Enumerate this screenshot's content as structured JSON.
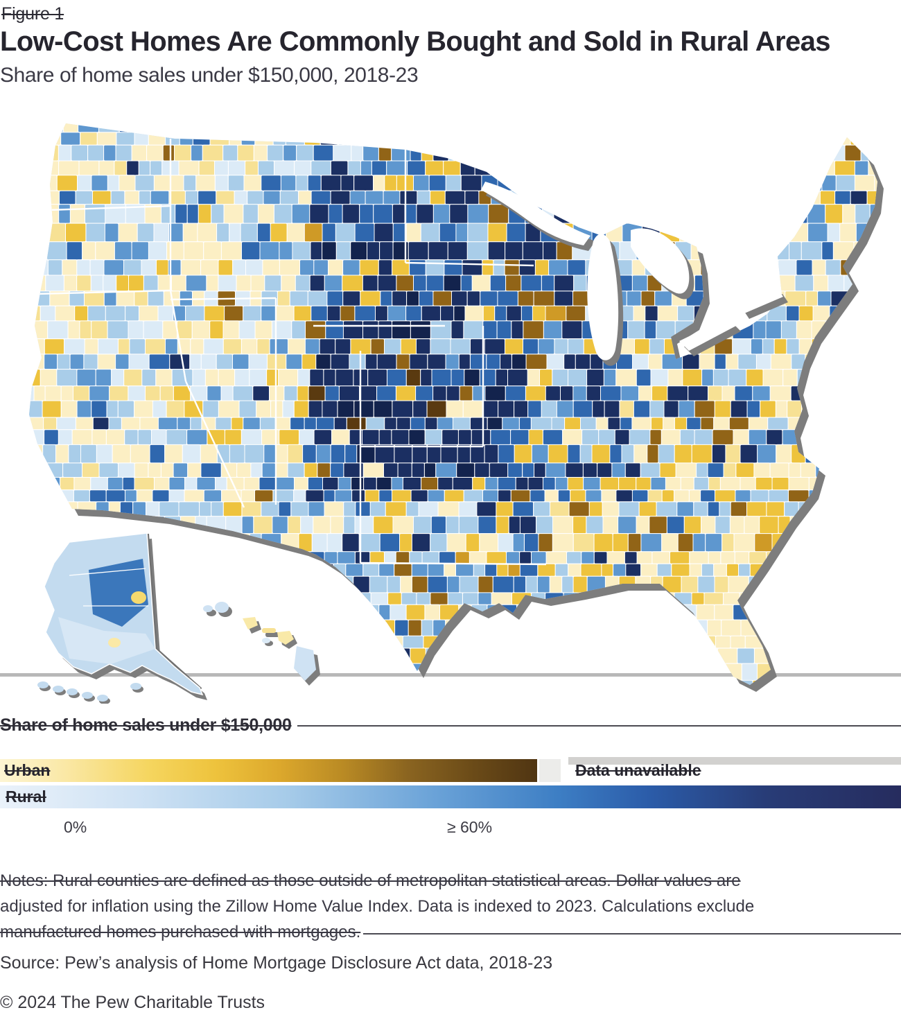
{
  "figure_label": "Figure 1",
  "title": "Low-Cost Homes Are Commonly Bought and Sold in Rural Areas",
  "subtitle": "Share of home sales under $150,000, 2018-23",
  "legend": {
    "heading": "Share of home sales under $150,000",
    "urban_label": "Urban",
    "rural_label": "Rural",
    "data_unavailable_label": "Data unavailable",
    "scale_min_label": "0%",
    "scale_max_label": "≥ 60%",
    "unavailable_color": "#ececea",
    "row_line_color": "#d2d1cf",
    "urban_gradient": [
      "#fdf5d3 0%",
      "#fae8a6 12%",
      "#f5d55e 28%",
      "#eec33d 40%",
      "#dca82c 52%",
      "#b98a24 64%",
      "#8a6420 76%",
      "#6b4b18 88%",
      "#503512 100%"
    ],
    "rural_gradient": [
      "#eaf2fa 0%",
      "#cfe2f4 15%",
      "#a6cbe9 32%",
      "#6ba3d8 48%",
      "#3d7ec4 62%",
      "#2b5ca9 72%",
      "#283c77 85%",
      "#262c5e 100%"
    ]
  },
  "notes": {
    "line1": "Notes: Rural counties are defined as those outside of metropolitan statistical areas. Dollar values are",
    "line2": "adjusted for inflation using the Zillow Home Value Index. Data is indexed to 2023. Calculations exclude",
    "line3": "manufactured homes purchased with mortgages."
  },
  "source": "Source: Pew’s analysis of Home Mortgage Disclosure Act data, 2018-23",
  "copyright": "© 2024 The Pew Charitable Trusts",
  "chart_data": {
    "type": "choropleth",
    "title": "Low-Cost Homes Are Commonly Bought and Sold in Rural Areas",
    "subtitle": "Share of home sales under $150,000, 2018-23",
    "geography": "United States counties, with Alaska and Hawaii insets",
    "variable": "Share of home sales under $150,000, 2018-23",
    "scale": {
      "min": 0,
      "max": 60,
      "units": "percent",
      "min_label": "0%",
      "max_label": "≥ 60%",
      "max_is_open_ended": true
    },
    "series": [
      {
        "name": "Urban",
        "palette": [
          "#fdf5d3",
          "#f5d55e",
          "#eec33d",
          "#b98a24",
          "#8a6420",
          "#503512"
        ]
      },
      {
        "name": "Rural",
        "palette": [
          "#eaf2fa",
          "#a6cbe9",
          "#6ba3d8",
          "#3d7ec4",
          "#2b5ca9",
          "#262c5e"
        ]
      }
    ],
    "data_unavailable_color": "#ececea",
    "patterns": [
      "Highest rural shares (dark navy) cluster in the Great Plains and Midwest: the Dakotas, Nebraska, Kansas, Oklahoma, Iowa, Missouri, Illinois and Mississippi Delta",
      "Pacific and Mountain West counties are mostly light blue and pale yellow (low shares)",
      "Southeast and Florida show many pale-yellow and gold urban counties (lower shares) mixed with blue rural counties",
      "Dark brown urban counties (high urban shares) appear in Oklahoma, Texas panhandle, Illinois and Appalachia",
      "Alaska is mostly light blue with one medium-blue borough; Hawaii islands are light blue and pale yellow"
    ],
    "mosaic": {
      "colors": {
        "paleB": "#dcebf7",
        "lightB": "#a9cde9",
        "midB": "#5e97cf",
        "darkB": "#2f67ae",
        "deepNavy": "#1b2f62",
        "navy2": "#13234d",
        "paleY": "#fcefc4",
        "lightY": "#f7e194",
        "gold": "#eec33d",
        "dGold": "#cf9a26",
        "brown": "#916417",
        "dBrown": "#5a3a10"
      },
      "region_weights": {
        "west": {
          "paleY": 0.3,
          "lightY": 0.08,
          "paleB": 0.16,
          "lightB": 0.22,
          "midB": 0.12,
          "gold": 0.06,
          "darkB": 0.04,
          "deepNavy": 0.01,
          "brown": 0.01
        },
        "plains": {
          "deepNavy": 0.26,
          "darkB": 0.22,
          "midB": 0.16,
          "lightB": 0.12,
          "paleB": 0.05,
          "gold": 0.09,
          "paleY": 0.05,
          "brown": 0.04,
          "dGold": 0.01
        },
        "plainsCore": {
          "deepNavy": 0.4,
          "navy2": 0.1,
          "darkB": 0.18,
          "midB": 0.1,
          "lightB": 0.05,
          "gold": 0.07,
          "brown": 0.05,
          "dBrown": 0.02,
          "paleY": 0.03
        },
        "south": {
          "lightB": 0.22,
          "midB": 0.16,
          "darkB": 0.12,
          "deepNavy": 0.08,
          "paleB": 0.06,
          "paleY": 0.16,
          "gold": 0.12,
          "brown": 0.05,
          "dGold": 0.03
        },
        "southeast": {
          "paleY": 0.26,
          "gold": 0.18,
          "lightY": 0.1,
          "lightB": 0.16,
          "midB": 0.11,
          "darkB": 0.09,
          "deepNavy": 0.04,
          "brown": 0.05,
          "dGold": 0.01
        },
        "northeast": {
          "paleY": 0.2,
          "gold": 0.13,
          "lightY": 0.05,
          "paleB": 0.06,
          "lightB": 0.2,
          "midB": 0.14,
          "darkB": 0.12,
          "deepNavy": 0.07,
          "brown": 0.03
        },
        "florida": {
          "paleY": 0.44,
          "lightY": 0.2,
          "gold": 0.12,
          "paleB": 0.08,
          "lightB": 0.12,
          "midB": 0.03,
          "darkB": 0.01
        }
      },
      "shadow_color": "#7d7d7d",
      "alaska_base": "#c3dbef",
      "alaska_highlight": "#3b77bb"
    }
  }
}
